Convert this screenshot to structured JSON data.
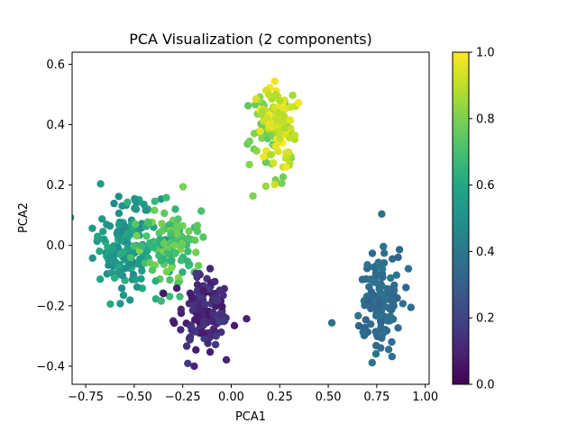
{
  "chart_data": {
    "type": "scatter",
    "title": "PCA Visualization (2 components)",
    "xlabel": "PCA1",
    "ylabel": "PCA2",
    "xlim": [
      -0.82,
      1.02
    ],
    "ylim": [
      -0.46,
      0.64
    ],
    "x_ticks": [
      {
        "value": -0.75,
        "label": "−0.75"
      },
      {
        "value": -0.5,
        "label": "−0.50"
      },
      {
        "value": -0.25,
        "label": "−0.25"
      },
      {
        "value": 0.0,
        "label": "0.00"
      },
      {
        "value": 0.25,
        "label": "0.25"
      },
      {
        "value": 0.5,
        "label": "0.50"
      },
      {
        "value": 0.75,
        "label": "0.75"
      },
      {
        "value": 1.0,
        "label": "1.00"
      }
    ],
    "y_ticks": [
      {
        "value": -0.4,
        "label": "−0.4"
      },
      {
        "value": -0.2,
        "label": "−0.2"
      },
      {
        "value": 0.0,
        "label": "0.0"
      },
      {
        "value": 0.2,
        "label": "0.2"
      },
      {
        "value": 0.4,
        "label": "0.4"
      },
      {
        "value": 0.6,
        "label": "0.6"
      }
    ],
    "colorbar": {
      "colormap": "viridis",
      "range": [
        0.0,
        1.0
      ],
      "ticks": [
        {
          "value": 0.0,
          "label": "0.0"
        },
        {
          "value": 0.2,
          "label": "0.2"
        },
        {
          "value": 0.4,
          "label": "0.4"
        },
        {
          "value": 0.6,
          "label": "0.6"
        },
        {
          "value": 0.8,
          "label": "0.8"
        },
        {
          "value": 1.0,
          "label": "1.0"
        }
      ]
    },
    "grid": false,
    "clusters": [
      {
        "center": [
          -0.55,
          0.0
        ],
        "spread": [
          0.08,
          0.08
        ],
        "color_value": 0.55,
        "color_range": 0.08,
        "count": 150
      },
      {
        "center": [
          -0.33,
          0.0
        ],
        "spread": [
          0.08,
          0.07
        ],
        "color_value": 0.72,
        "color_range": 0.1,
        "count": 120
      },
      {
        "center": [
          -0.15,
          -0.22
        ],
        "spread": [
          0.07,
          0.06
        ],
        "color_value": 0.12,
        "color_range": 0.06,
        "count": 140
      },
      {
        "center": [
          0.76,
          -0.18
        ],
        "spread": [
          0.06,
          0.09
        ],
        "color_value": 0.35,
        "color_range": 0.04,
        "count": 130
      },
      {
        "center": [
          0.18,
          0.4
        ],
        "spread": [
          0.06,
          0.07
        ],
        "color_value": 0.8,
        "color_range": 0.05,
        "count": 50
      },
      {
        "center": [
          0.24,
          0.4
        ],
        "spread": [
          0.05,
          0.07
        ],
        "color_value": 0.93,
        "color_range": 0.06,
        "count": 90
      }
    ]
  }
}
